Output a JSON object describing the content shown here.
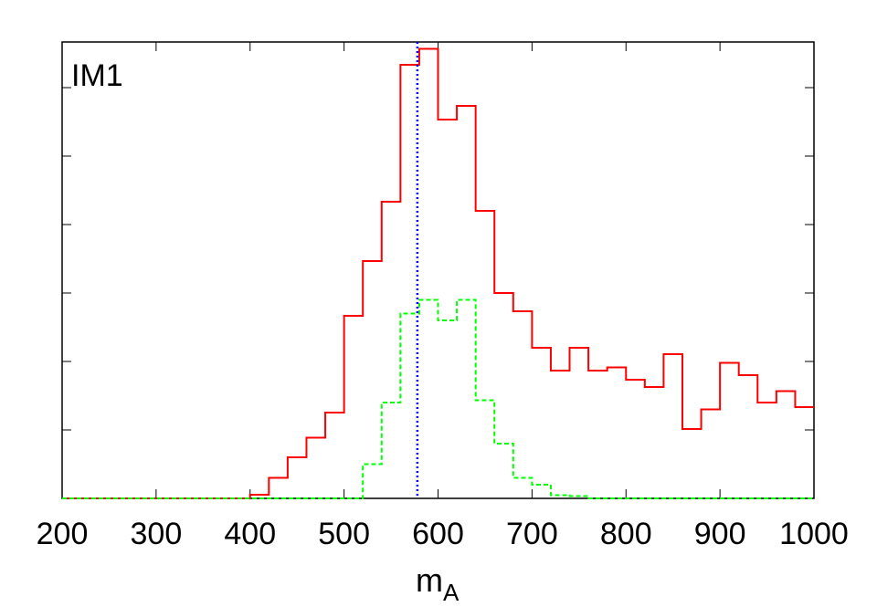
{
  "chart_data": {
    "type": "line",
    "panel_label": "IM1",
    "xlabel": "m",
    "xlabel_subscript": "A",
    "ylabel": "",
    "xlim": [
      200,
      1000
    ],
    "ylim": [
      0,
      100
    ],
    "x_ticks": [
      200,
      300,
      400,
      500,
      600,
      700,
      800,
      900,
      1000
    ],
    "y_ticks": [
      0,
      15,
      30,
      45,
      60,
      75,
      90
    ],
    "y_tick_labels_shown": false,
    "grid": false,
    "legend": "none",
    "bin_edges": [
      200,
      220,
      240,
      260,
      280,
      300,
      320,
      340,
      360,
      380,
      400,
      420,
      440,
      460,
      480,
      500,
      520,
      540,
      560,
      580,
      600,
      620,
      640,
      660,
      680,
      700,
      720,
      740,
      760,
      780,
      800,
      820,
      840,
      860,
      880,
      900,
      920,
      940,
      960,
      980,
      1000
    ],
    "series": [
      {
        "color": "#ff0000",
        "style": "solid",
        "values": [
          0,
          0,
          0,
          0,
          0,
          0,
          0,
          0,
          0,
          0,
          0.8,
          4.5,
          9,
          13.3,
          18.8,
          40,
          52,
          65,
          95,
          98.5,
          83,
          86,
          63,
          45,
          41,
          33,
          28,
          33,
          28,
          28.7,
          26,
          24.4,
          31.6,
          15.2,
          19.5,
          29.7,
          27,
          21,
          23.5,
          20
        ]
      },
      {
        "color": "#00ff00",
        "style": "dashed",
        "values": [
          0,
          0,
          0,
          0,
          0,
          0,
          0,
          0,
          0,
          0,
          0,
          0,
          0,
          0,
          0,
          0,
          7.5,
          21,
          40.5,
          43.5,
          39,
          43.5,
          21.5,
          12,
          4.5,
          3,
          0.7,
          0.5,
          0,
          0,
          0,
          0,
          0,
          0,
          0,
          0,
          0,
          0,
          0,
          0
        ]
      }
    ],
    "vertical_line": {
      "x": 578,
      "color": "#0000ff",
      "style": "dotted"
    }
  }
}
